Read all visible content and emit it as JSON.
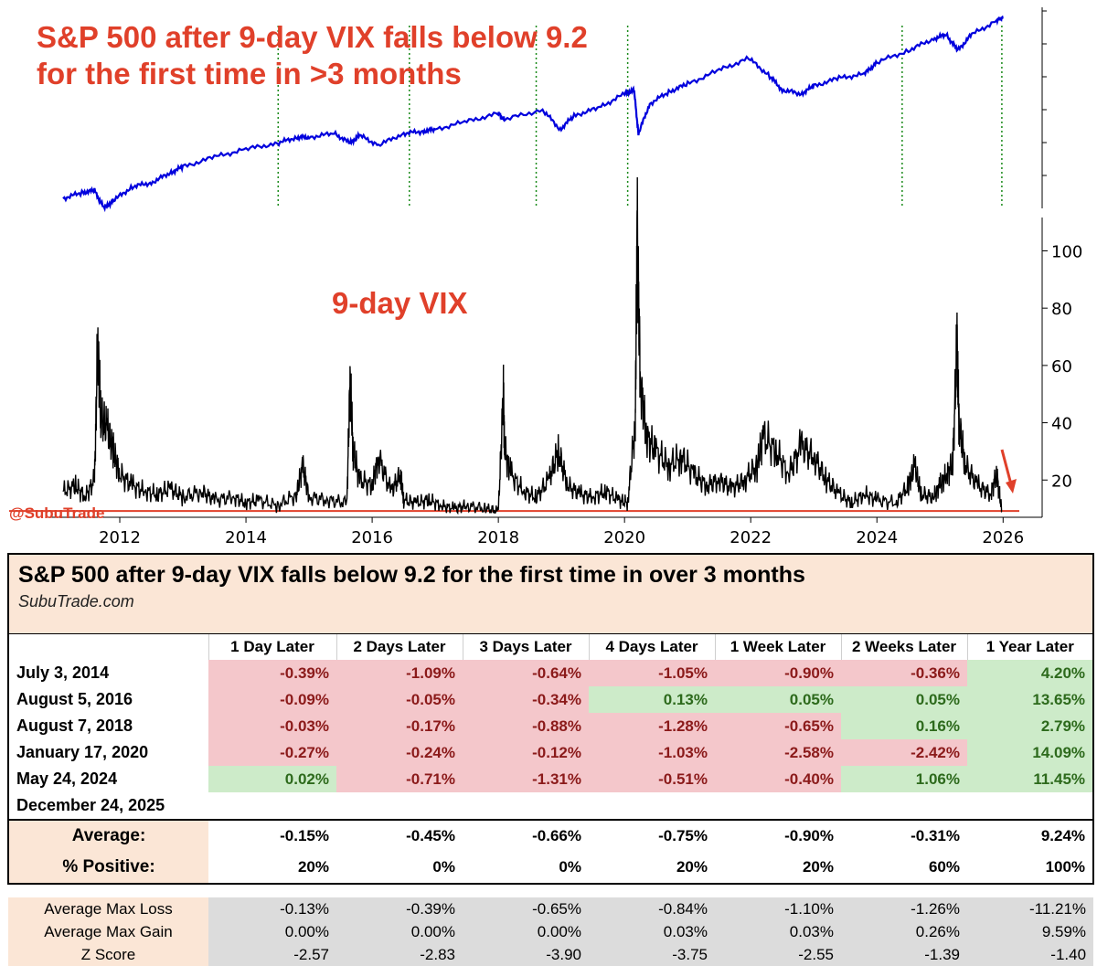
{
  "chart_data": [
    {
      "type": "line",
      "title": "S&P 500 after 9-day VIX falls below 9.2\nfor the first time in >3 months",
      "title_lines": [
        "S&P 500 after 9-day VIX falls below 9.2",
        "for the first time in >3 months"
      ],
      "series": [
        {
          "name": "",
          "color": "#0000dd",
          "x": [
            2011.1,
            2011.4,
            2011.6,
            2011.75,
            2011.9,
            2012.2,
            2012.5,
            2012.8,
            2013.0,
            2013.5,
            2014.0,
            2014.5,
            2014.8,
            2015.0,
            2015.4,
            2015.65,
            2015.8,
            2016.1,
            2016.5,
            2016.8,
            2017.0,
            2017.5,
            2018.0,
            2018.1,
            2018.7,
            2018.98,
            2019.2,
            2019.6,
            2020.0,
            2020.15,
            2020.22,
            2020.4,
            2020.7,
            2021.0,
            2021.5,
            2021.97,
            2022.3,
            2022.5,
            2022.8,
            2023.0,
            2023.4,
            2023.8,
            2024.0,
            2024.5,
            2024.9,
            2025.1,
            2025.28,
            2025.5,
            2025.9,
            2026.0
          ],
          "y": [
            0.05,
            0.08,
            0.09,
            0.0,
            0.04,
            0.11,
            0.13,
            0.18,
            0.21,
            0.26,
            0.3,
            0.33,
            0.36,
            0.36,
            0.38,
            0.33,
            0.37,
            0.32,
            0.38,
            0.39,
            0.4,
            0.44,
            0.48,
            0.45,
            0.5,
            0.4,
            0.47,
            0.51,
            0.58,
            0.6,
            0.38,
            0.53,
            0.59,
            0.63,
            0.7,
            0.76,
            0.67,
            0.6,
            0.58,
            0.62,
            0.66,
            0.68,
            0.74,
            0.8,
            0.86,
            0.88,
            0.8,
            0.88,
            0.95,
            0.97
          ]
        }
      ],
      "event_lines_x": [
        2014.51,
        2016.59,
        2018.6,
        2020.05,
        2024.4,
        2025.98
      ],
      "xlim": [
        2011.0,
        2026.3
      ],
      "yaxis": "right",
      "ytick_labels": false,
      "grid": false
    },
    {
      "type": "line",
      "title": "9-day VIX",
      "series": [
        {
          "name": "",
          "color": "#000000",
          "x": [
            2011.1,
            2011.3,
            2011.45,
            2011.6,
            2011.65,
            2011.7,
            2011.8,
            2011.9,
            2012.0,
            2012.2,
            2012.4,
            2012.6,
            2012.8,
            2013.0,
            2013.3,
            2013.5,
            2013.8,
            2014.0,
            2014.2,
            2014.5,
            2014.8,
            2014.9,
            2015.0,
            2015.3,
            2015.6,
            2015.65,
            2015.7,
            2015.8,
            2016.0,
            2016.1,
            2016.3,
            2016.45,
            2016.5,
            2016.7,
            2016.9,
            2017.1,
            2017.3,
            2017.5,
            2017.8,
            2018.0,
            2018.08,
            2018.1,
            2018.2,
            2018.4,
            2018.6,
            2018.8,
            2018.95,
            2019.1,
            2019.3,
            2019.5,
            2019.7,
            2019.9,
            2020.05,
            2020.17,
            2020.2,
            2020.25,
            2020.35,
            2020.5,
            2020.7,
            2020.9,
            2021.1,
            2021.3,
            2021.5,
            2021.7,
            2021.9,
            2022.1,
            2022.2,
            2022.4,
            2022.6,
            2022.8,
            2023.0,
            2023.2,
            2023.4,
            2023.6,
            2023.8,
            2024.0,
            2024.3,
            2024.5,
            2024.6,
            2024.7,
            2024.9,
            2025.0,
            2025.1,
            2025.2,
            2025.27,
            2025.3,
            2025.4,
            2025.6,
            2025.8,
            2025.9,
            2025.98
          ],
          "y": [
            16,
            18,
            14,
            20,
            68,
            42,
            38,
            30,
            22,
            18,
            16,
            15,
            17,
            14,
            16,
            13,
            14,
            12,
            13,
            11,
            15,
            25,
            14,
            13,
            12,
            55,
            30,
            20,
            18,
            28,
            16,
            22,
            13,
            12,
            13,
            11,
            10,
            11,
            10,
            9,
            50,
            30,
            22,
            16,
            14,
            20,
            30,
            18,
            15,
            14,
            16,
            13,
            12,
            40,
            107,
            55,
            35,
            30,
            25,
            28,
            22,
            18,
            20,
            17,
            20,
            25,
            35,
            30,
            22,
            32,
            28,
            20,
            15,
            12,
            15,
            13,
            12,
            18,
            25,
            15,
            14,
            18,
            22,
            25,
            68,
            40,
            25,
            18,
            15,
            22,
            9
          ]
        }
      ],
      "hline": {
        "y": 9.2,
        "color": "#e0402a"
      },
      "xlim": [
        2011.0,
        2026.3
      ],
      "ylim": [
        7,
        111
      ],
      "xticks": [
        2012,
        2014,
        2016,
        2018,
        2020,
        2022,
        2024,
        2026
      ],
      "xtick_labels": [
        "2012",
        "2014",
        "2016",
        "2018",
        "2020",
        "2022",
        "2024",
        "2026"
      ],
      "yticks": [
        20,
        40,
        60,
        80,
        100
      ],
      "ytick_labels": [
        "20",
        "40",
        "60",
        "80",
        "100"
      ],
      "yaxis": "right",
      "grid": false
    }
  ],
  "watermark": "@SubuTrade",
  "colors": {
    "title": "#e0402a",
    "spx": "#0000dd",
    "event": "#1a8a1a",
    "neg_bg": "#f4c7cb",
    "neg_fg": "#8b1a1a",
    "pos_bg": "#cdebc9",
    "pos_fg": "#2d6a1c",
    "header_bg": "#fbe6d6",
    "stat_bg": "#dcdcdc"
  },
  "table": {
    "title": "S&P 500 after 9-day VIX falls below 9.2 for the first time in over 3 months",
    "subtitle": "SubuTrade.com",
    "columns": [
      "1 Day Later",
      "2 Days Later",
      "3 Days Later",
      "4 Days Later",
      "1 Week Later",
      "2 Weeks Later",
      "1 Year Later"
    ],
    "rows": [
      {
        "date": "July 3, 2014",
        "values": [
          "-0.39%",
          "-1.09%",
          "-0.64%",
          "-1.05%",
          "-0.90%",
          "-0.36%",
          "4.20%"
        ]
      },
      {
        "date": "August 5, 2016",
        "values": [
          "-0.09%",
          "-0.05%",
          "-0.34%",
          "0.13%",
          "0.05%",
          "0.05%",
          "13.65%"
        ]
      },
      {
        "date": "August 7, 2018",
        "values": [
          "-0.03%",
          "-0.17%",
          "-0.88%",
          "-1.28%",
          "-0.65%",
          "0.16%",
          "2.79%"
        ]
      },
      {
        "date": "January 17, 2020",
        "values": [
          "-0.27%",
          "-0.24%",
          "-0.12%",
          "-1.03%",
          "-2.58%",
          "-2.42%",
          "14.09%"
        ]
      },
      {
        "date": "May 24, 2024",
        "values": [
          "0.02%",
          "-0.71%",
          "-1.31%",
          "-0.51%",
          "-0.40%",
          "1.06%",
          "11.45%"
        ]
      },
      {
        "date": "December 24, 2025",
        "values": [
          "",
          "",
          "",
          "",
          "",
          "",
          ""
        ]
      }
    ],
    "summary": [
      {
        "label": "Average:",
        "values": [
          "-0.15%",
          "-0.45%",
          "-0.66%",
          "-0.75%",
          "-0.90%",
          "-0.31%",
          "9.24%"
        ]
      },
      {
        "label": "% Positive:",
        "values": [
          "20%",
          "0%",
          "0%",
          "20%",
          "20%",
          "60%",
          "100%"
        ]
      }
    ],
    "stats": [
      {
        "label": "Average Max Loss",
        "values": [
          "-0.13%",
          "-0.39%",
          "-0.65%",
          "-0.84%",
          "-1.10%",
          "-1.26%",
          "-11.21%"
        ]
      },
      {
        "label": "Average Max Gain",
        "values": [
          "0.00%",
          "0.00%",
          "0.00%",
          "0.03%",
          "0.03%",
          "0.26%",
          "9.59%"
        ]
      },
      {
        "label": "Z Score",
        "values": [
          "-2.57",
          "-2.83",
          "-3.90",
          "-3.75",
          "-2.55",
          "-1.39",
          "-1.40"
        ]
      }
    ]
  }
}
